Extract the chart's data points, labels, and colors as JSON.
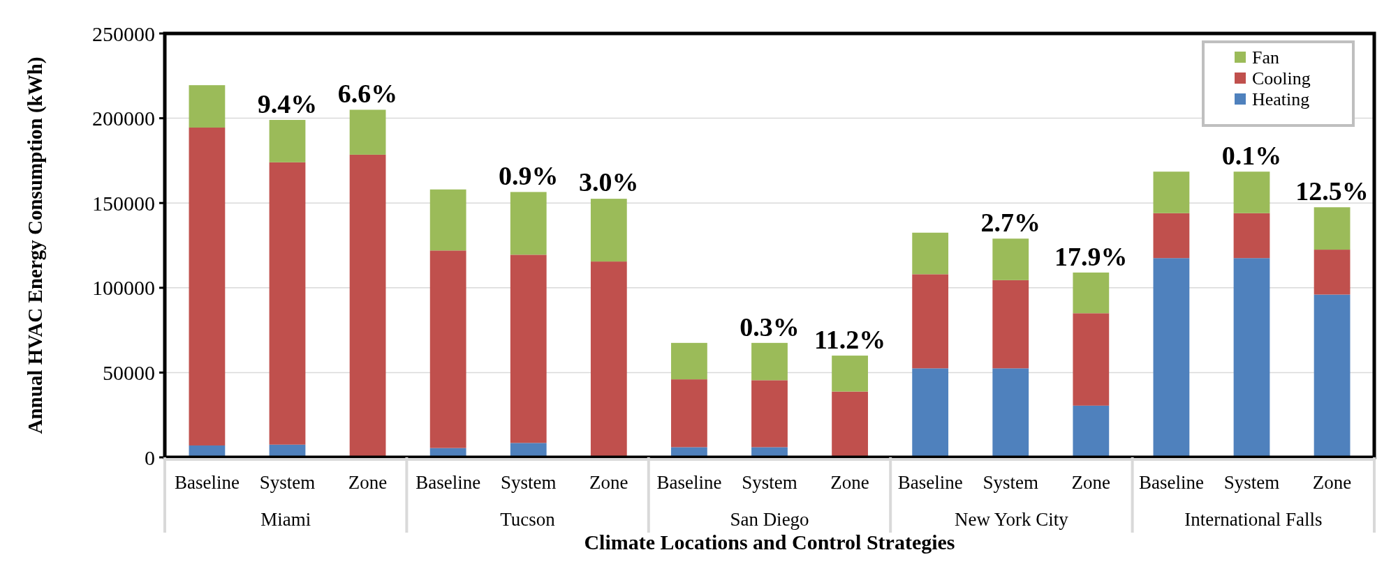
{
  "chart_data": {
    "type": "bar",
    "stacked": true,
    "ylabel": "Annual HVAC Energy Consumption (kWh)",
    "xlabel": "Climate Locations and Control Strategies",
    "categories": [
      "Baseline",
      "System",
      "Zone",
      "Baseline",
      "System",
      "Zone",
      "Baseline",
      "System",
      "Zone",
      "Baseline",
      "System",
      "Zone",
      "Baseline",
      "System",
      "Zone"
    ],
    "annotations": [
      "Miami",
      "Tucson",
      "San Diego",
      "New York City",
      "International Falls",
      {
        "text": "9.4%",
        "y": 199000
      },
      {
        "text": "6.6%",
        "y": 205000
      },
      {
        "text": "0.9%",
        "y": 156500
      },
      {
        "text": "3.0%",
        "y": 153000
      },
      {
        "text": "0.3%",
        "y": 67500
      },
      {
        "text": "11.2%",
        "y": 60000
      },
      {
        "text": "2.7%",
        "y": 129000
      },
      {
        "text": "17.9%",
        "y": 109000
      },
      {
        "text": "0.1%",
        "y": 168500
      },
      {
        "text": "12.5%",
        "y": 147500
      }
    ],
    "series": [
      {
        "name": "Heating",
        "color": "#4f81bd",
        "values": [
          7000,
          7500,
          0,
          5500,
          8500,
          null,
          6000,
          6000,
          0,
          52500,
          52500,
          30500,
          117500,
          117500,
          96000
        ]
      },
      {
        "name": "Cooling",
        "color": "#c0504d",
        "values": [
          187500,
          166500,
          178500,
          116500,
          111000,
          115500,
          40000,
          39500,
          38800,
          55500,
          52000,
          54500,
          26500,
          26500,
          26500
        ]
      },
      {
        "name": "Fan",
        "color": "#9bbb59",
        "values": [
          25000,
          25000,
          26500,
          36000,
          37000,
          37000,
          21500,
          22000,
          21200,
          24500,
          24500,
          24000,
          24500,
          24500,
          25000
        ]
      }
    ],
    "ylim": [
      0,
      250000
    ],
    "yticks": [
      0,
      50000,
      100000,
      150000,
      200000,
      250000
    ],
    "grid": "y",
    "legend": "top right"
  }
}
